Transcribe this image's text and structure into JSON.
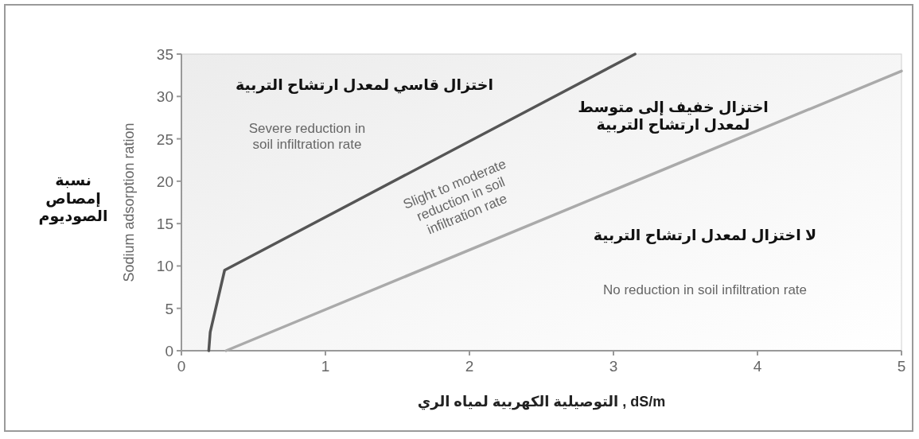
{
  "chart_data": {
    "type": "line",
    "xlabel": "التوصيلية الكهربية لمياه الري , dS/m",
    "ylabel": "Sodium adsorption ration",
    "xlim": [
      0,
      5
    ],
    "ylim": [
      0,
      35
    ],
    "xticks": [
      0,
      1,
      2,
      3,
      4,
      5
    ],
    "yticks": [
      0,
      5,
      10,
      15,
      20,
      25,
      30,
      35
    ],
    "series": [
      {
        "color": "#555555",
        "x": [
          0.19,
          0.2,
          0.3,
          3.15
        ],
        "values": [
          0,
          2.2,
          9.5,
          35
        ]
      },
      {
        "color": "#aaaaaa",
        "x": [
          0.31,
          5
        ],
        "values": [
          0,
          33
        ]
      }
    ],
    "annotations": [
      "اختزال قاسي لمعدل ارتشاح التربية",
      "Severe reduction in\nsoil infiltration rate",
      "Slight to moderate\nreduction in soil\ninfiltration rate",
      "اختزال خفيف إلى متوسط\nلمعدل ارتشاح التربية",
      "لا اختزال لمعدل ارتشاح التربية",
      "No reduction in soil infiltration rate",
      "نسبة\nإمصاص\nالصوديوم"
    ]
  }
}
